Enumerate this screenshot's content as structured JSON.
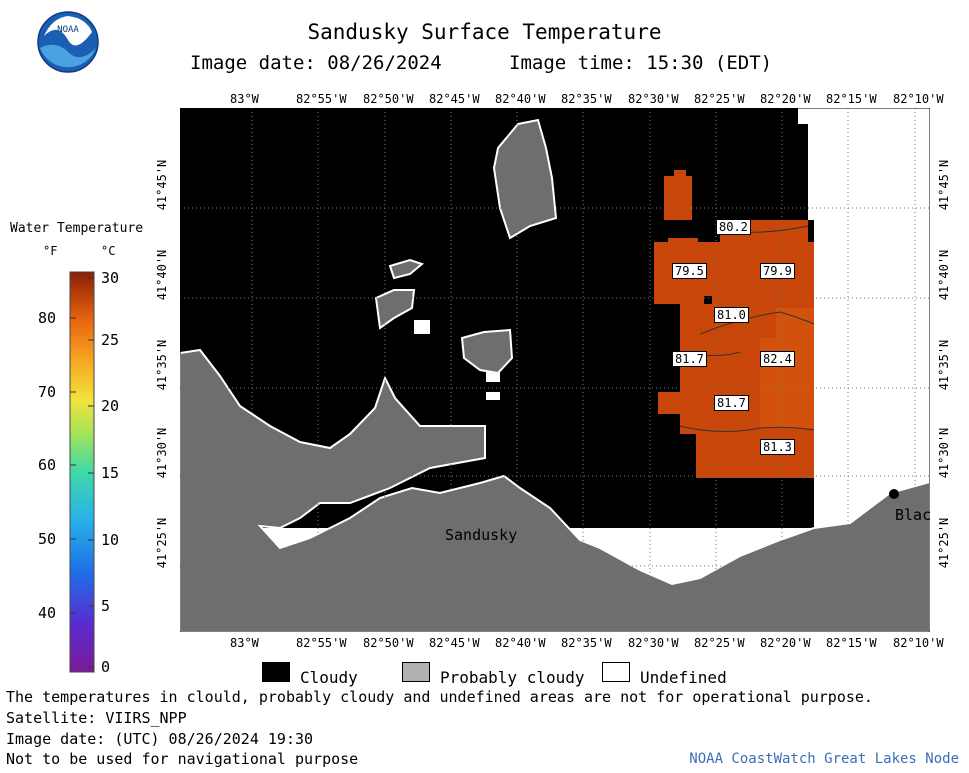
{
  "header": {
    "title": "Sandusky Surface Temperature",
    "image_date_label": "Image date: 08/26/2024",
    "image_time_label": "Image time: 15:30 (EDT)"
  },
  "logo": {
    "text": "NOAA"
  },
  "colorbar": {
    "title": "Water Temperature",
    "unit_f": "°F",
    "unit_c": "°C",
    "f_ticks": [
      "80",
      "70",
      "60",
      "50",
      "40"
    ],
    "c_ticks": [
      "30",
      "25",
      "20",
      "15",
      "10",
      "5",
      "0"
    ]
  },
  "map": {
    "lon_labels": [
      "83°W",
      "82°55'W",
      "82°50'W",
      "82°45'W",
      "82°40'W",
      "82°35'W",
      "82°30'W",
      "82°25'W",
      "82°20'W",
      "82°15'W",
      "82°10'W"
    ],
    "lat_labels": [
      "41°45'N",
      "41°40'N",
      "41°35'N",
      "41°30'N",
      "41°25'N"
    ],
    "place_labels": {
      "sandusky": "Sandusky",
      "blac": "Blac"
    },
    "temperatures": [
      {
        "id": "t1",
        "value": "80.2"
      },
      {
        "id": "t2",
        "value": "79.5"
      },
      {
        "id": "t3",
        "value": "79.9"
      },
      {
        "id": "t4",
        "value": "81.0"
      },
      {
        "id": "t5",
        "value": "81.7"
      },
      {
        "id": "t6",
        "value": "82.4"
      },
      {
        "id": "t7",
        "value": "81.7"
      },
      {
        "id": "t8",
        "value": "81.3"
      }
    ]
  },
  "legend": {
    "cloudy": "Cloudy",
    "probably_cloudy": "Probably cloudy",
    "undefined": "Undefined"
  },
  "footer": {
    "disclaimer": "The temperatures in clould, probably cloudy and undefined areas are not for operational purpose.",
    "satellite": "Satellite: VIIRS_NPP",
    "utc_date": "Image date: (UTC) 08/26/2024  19:30",
    "nav_warning": "Not to be used for navigational purpose",
    "credit": "NOAA CoastWatch Great Lakes Node"
  },
  "colors": {
    "cloudy": "#000000",
    "probably_cloudy": "#6e6e6e",
    "undefined": "#ffffff",
    "warm_water": "#c8460a",
    "warmer_water": "#d2520c",
    "credit_blue": "#3a6fb7"
  }
}
